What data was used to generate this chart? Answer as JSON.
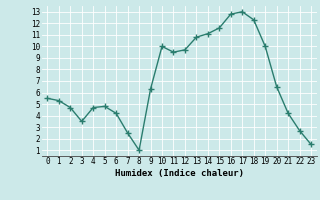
{
  "title": "",
  "xlabel": "Humidex (Indice chaleur)",
  "ylabel": "",
  "x_values": [
    0,
    1,
    2,
    3,
    4,
    5,
    6,
    7,
    8,
    9,
    10,
    11,
    12,
    13,
    14,
    15,
    16,
    17,
    18,
    19,
    20,
    21,
    22,
    23
  ],
  "y_values": [
    5.5,
    5.3,
    4.7,
    3.5,
    4.7,
    4.8,
    4.2,
    2.5,
    1.0,
    6.3,
    10.0,
    9.5,
    9.7,
    10.8,
    11.1,
    11.6,
    12.8,
    13.0,
    12.3,
    10.0,
    6.5,
    4.2,
    2.7,
    1.5
  ],
  "line_color": "#2a7d6e",
  "marker": "+",
  "marker_size": 4,
  "bg_color": "#cce9e9",
  "plot_bg_color": "#cce9e9",
  "grid_color": "#ffffff",
  "ylim_min": 0.5,
  "ylim_max": 13.5,
  "xlim_min": -0.5,
  "xlim_max": 23.5,
  "yticks": [
    1,
    2,
    3,
    4,
    5,
    6,
    7,
    8,
    9,
    10,
    11,
    12,
    13
  ],
  "xticks": [
    0,
    1,
    2,
    3,
    4,
    5,
    6,
    7,
    8,
    9,
    10,
    11,
    12,
    13,
    14,
    15,
    16,
    17,
    18,
    19,
    20,
    21,
    22,
    23
  ],
  "label_fontsize": 6.5,
  "tick_fontsize": 5.5,
  "line_width": 1.0,
  "marker_linewidth": 1.0
}
